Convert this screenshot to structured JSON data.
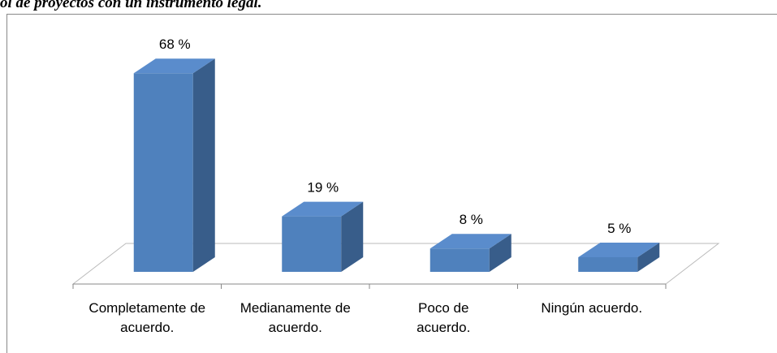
{
  "chart_data": {
    "type": "bar3d",
    "title": "ol de proyectos con un instrumento legal.",
    "categories": [
      "Completamente de acuerdo.",
      "Medianamente de acuerdo.",
      "Poco de acuerdo.",
      "Ningún acuerdo."
    ],
    "values": [
      68,
      19,
      8,
      5
    ],
    "value_labels": [
      "68 %",
      "19 %",
      "8 %",
      "5 %"
    ],
    "color": "#4f81bd"
  }
}
